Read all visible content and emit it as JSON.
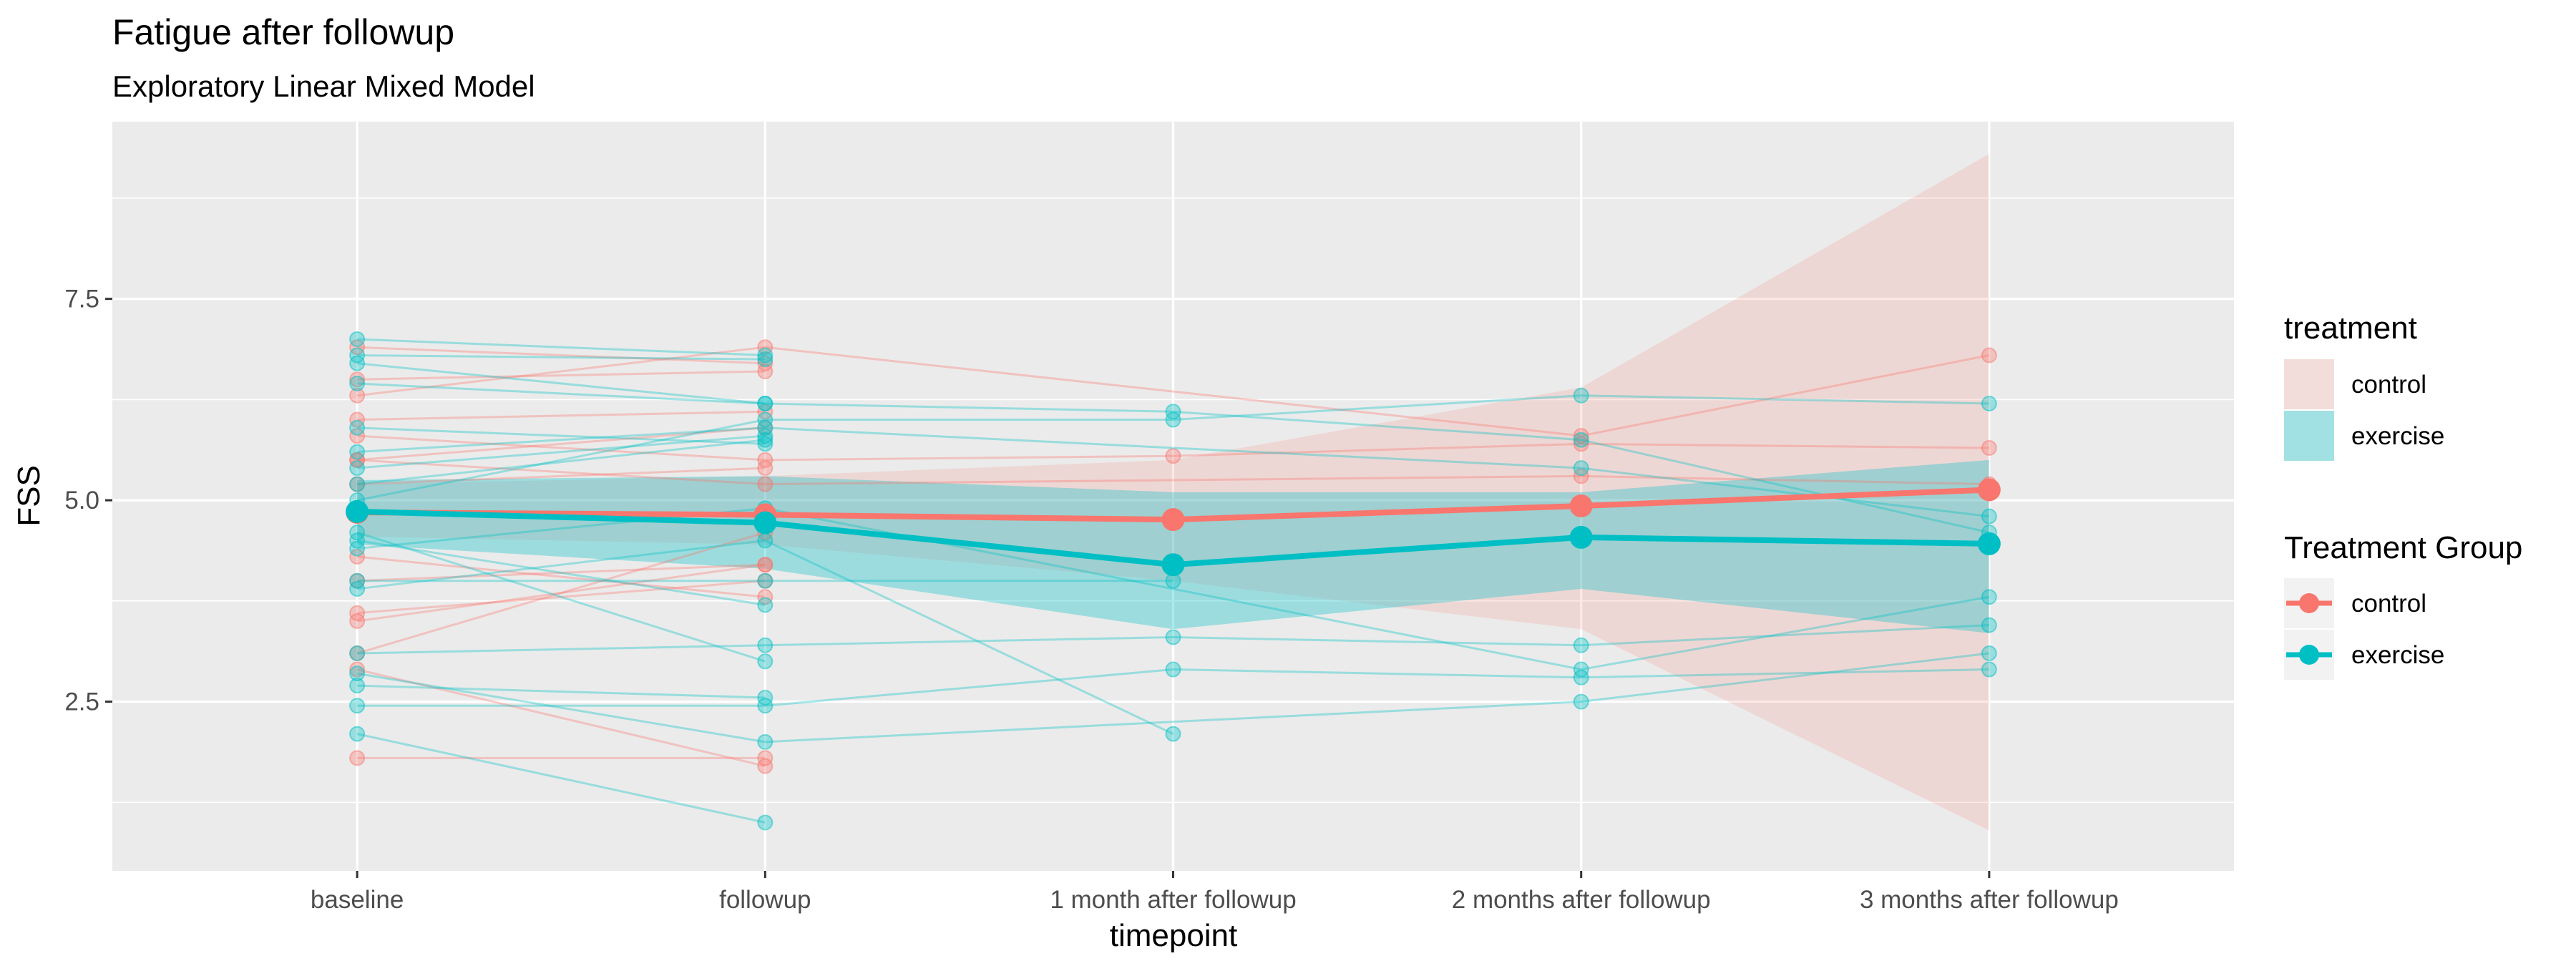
{
  "chart_data": {
    "type": "line",
    "title": "Fatigue after followup",
    "subtitle": "Exploratory Linear Mixed Model",
    "xlabel": "timepoint",
    "ylabel": "FSS",
    "categories": [
      "baseline",
      "followup",
      "1 month after followup",
      "2 months after followup",
      "3 months after followup"
    ],
    "ylim": [
      0.4,
      9.7
    ],
    "yticks": [
      2.5,
      5.0,
      7.5
    ],
    "ytick_labels": [
      "2.5",
      "5.0",
      "7.5"
    ],
    "grid": true,
    "colors": {
      "control": "#F8766D",
      "exercise": "#00BFC4",
      "panel": "#EBEBEB",
      "grid": "#FFFFFF"
    },
    "legends": [
      {
        "title": "treatment",
        "type": "fill",
        "entries": [
          "control",
          "exercise"
        ]
      },
      {
        "title": "Treatment Group",
        "type": "line-point",
        "entries": [
          "control",
          "exercise"
        ]
      }
    ],
    "series": [
      {
        "name": "control",
        "values": [
          4.85,
          4.82,
          4.76,
          4.93,
          5.13
        ],
        "ci_lower": [
          4.55,
          4.45,
          4.0,
          3.4,
          0.9
        ],
        "ci_upper": [
          5.2,
          5.3,
          5.5,
          6.4,
          9.3
        ]
      },
      {
        "name": "exercise",
        "values": [
          4.86,
          4.72,
          4.2,
          4.54,
          4.46
        ],
        "ci_lower": [
          4.45,
          4.15,
          3.4,
          3.9,
          3.35
        ],
        "ci_upper": [
          5.25,
          5.3,
          5.1,
          5.1,
          5.5
        ]
      }
    ],
    "individual_trajectories": [
      {
        "group": "control",
        "values": [
          6.9,
          6.7
        ]
      },
      {
        "group": "control",
        "values": [
          6.5,
          6.6
        ]
      },
      {
        "group": "control",
        "values": [
          5.5,
          5.9
        ]
      },
      {
        "group": "control",
        "values": [
          6.0,
          6.1
        ]
      },
      {
        "group": "control",
        "values": [
          5.2,
          5.4
        ]
      },
      {
        "group": "control",
        "values": [
          4.0,
          4.2
        ]
      },
      {
        "group": "control",
        "values": [
          3.6,
          4.0
        ]
      },
      {
        "group": "control",
        "values": [
          3.5,
          4.2
        ]
      },
      {
        "group": "control",
        "values": [
          2.9,
          1.7
        ]
      },
      {
        "group": "control",
        "values": [
          3.1,
          4.6
        ]
      },
      {
        "group": "control",
        "values": [
          1.8,
          1.8
        ]
      },
      {
        "group": "control",
        "values": [
          5.8,
          5.5,
          5.55,
          5.7,
          5.65
        ]
      },
      {
        "group": "control",
        "values": [
          5.5,
          5.2,
          null,
          5.3,
          5.2
        ]
      },
      {
        "group": "control",
        "values": [
          6.3,
          6.9,
          null,
          5.8,
          6.8
        ]
      },
      {
        "group": "control",
        "values": [
          4.3,
          3.8
        ]
      },
      {
        "group": "exercise",
        "values": [
          7.0,
          6.8
        ]
      },
      {
        "group": "exercise",
        "values": [
          6.8,
          6.75
        ]
      },
      {
        "group": "exercise",
        "values": [
          6.45,
          6.2,
          6.1,
          5.75,
          4.6
        ]
      },
      {
        "group": "exercise",
        "values": [
          5.9,
          5.7
        ]
      },
      {
        "group": "exercise",
        "values": [
          5.4,
          5.8
        ]
      },
      {
        "group": "exercise",
        "values": [
          4.6,
          3.0
        ]
      },
      {
        "group": "exercise",
        "values": [
          3.9,
          4.5,
          2.1
        ]
      },
      {
        "group": "exercise",
        "values": [
          2.45,
          2.45,
          2.9,
          2.8,
          2.9
        ]
      },
      {
        "group": "exercise",
        "values": [
          2.1,
          1.0
        ]
      },
      {
        "group": "exercise",
        "values": [
          3.1,
          3.2,
          3.3,
          3.2,
          3.45
        ]
      },
      {
        "group": "exercise",
        "values": [
          2.7,
          2.55
        ]
      },
      {
        "group": "exercise",
        "values": [
          2.85,
          2.0,
          null,
          2.5,
          3.1
        ]
      },
      {
        "group": "exercise",
        "values": [
          5.0,
          6.0,
          6.0,
          6.3,
          6.2
        ]
      },
      {
        "group": "exercise",
        "values": [
          4.0,
          4.0,
          4.0
        ]
      },
      {
        "group": "exercise",
        "values": [
          5.6,
          5.9,
          null,
          5.4,
          4.8
        ]
      },
      {
        "group": "exercise",
        "values": [
          4.4,
          4.9,
          null,
          2.9,
          3.8
        ]
      },
      {
        "group": "exercise",
        "values": [
          6.7,
          6.2
        ]
      },
      {
        "group": "exercise",
        "values": [
          4.5,
          3.7
        ]
      },
      {
        "group": "exercise",
        "values": [
          5.2,
          5.75
        ]
      }
    ]
  }
}
